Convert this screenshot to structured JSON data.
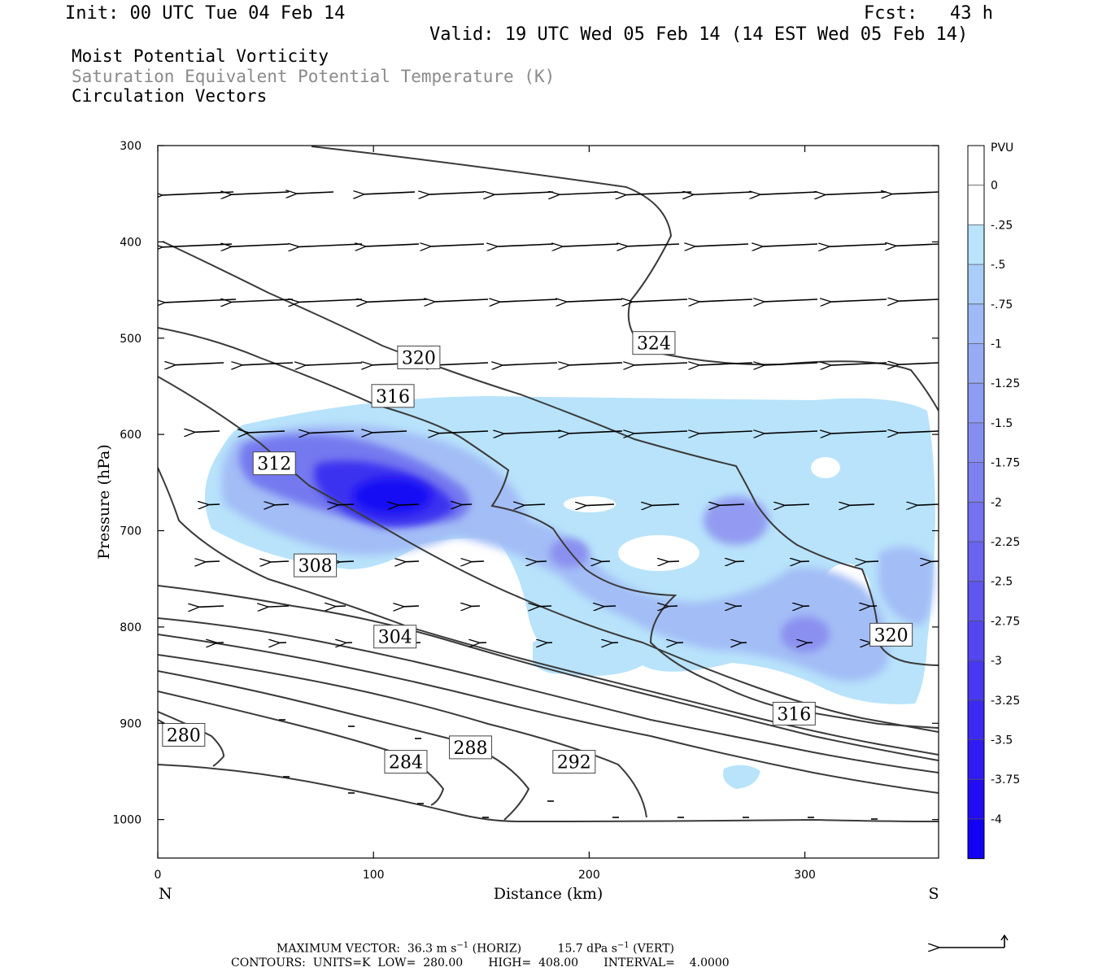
{
  "header": {
    "init": "Init: 00 UTC Tue 04 Feb 14",
    "fcst": "Fcst:   43 h",
    "valid": "Valid: 19 UTC Wed 05 Feb 14 (14 EST Wed 05 Feb 14)",
    "field1": "Moist Potential Vorticity",
    "field2": "Saturation Equivalent Potential Temperature (K)",
    "field3": "Circulation Vectors"
  },
  "colors": {
    "mpv_light": "#b6e2fb",
    "mpv_mid": "#9fb6f5",
    "mpv_strong": "#6f74ef",
    "mpv_max": "#1a14f2",
    "contour": "#333333"
  },
  "footer": {
    "max_vector": "MAXIMUM VECTOR:  36.3 m s",
    "max_vector_horiz_unit": " (HORIZ)",
    "max_vector_vert": "15.7 dPa s",
    "max_vector_vert_unit": " (VERT)",
    "contours": "CONTOURS:  UNITS=K  LOW=  280.00       HIGH=  408.00       INTERVAL=    4.0000"
  },
  "chart_data": {
    "type": "cross-section",
    "xlabel": "Distance (km)",
    "ylabel": "Pressure (hPa)",
    "x_ticks": [
      0,
      100,
      200,
      300
    ],
    "y_ticks": [
      300,
      400,
      500,
      600,
      700,
      800,
      900,
      1000
    ],
    "xlim": [
      0,
      362
    ],
    "ylim": [
      300,
      1040
    ],
    "left_end": "N",
    "right_end": "S",
    "colorbar": {
      "unit": "PVU",
      "levels": [
        "0",
        "-.25",
        "-.5",
        "-.75",
        "-1",
        "-1.25",
        "-1.5",
        "-1.75",
        "-2",
        "-2.25",
        "-2.5",
        "-2.75",
        "-3",
        "-3.25",
        "-3.5",
        "-3.75",
        "-4"
      ],
      "colors": [
        "#ffffff",
        "#ffffff",
        "#b9e4fb",
        "#a9cdf8",
        "#9fbaf6",
        "#97aaf4",
        "#8f9cf3",
        "#878ef2",
        "#7e80f1",
        "#7472f0",
        "#6a63ef",
        "#5f55ef",
        "#5446f0",
        "#4838f1",
        "#3c2af2",
        "#301bf3",
        "#220cf4",
        "#1400f5"
      ]
    },
    "theta_e_contours": [
      {
        "label": "280",
        "km": 12,
        "hpa": 912
      },
      {
        "label": "284",
        "km": 115,
        "hpa": 940
      },
      {
        "label": "288",
        "km": 145,
        "hpa": 925
      },
      {
        "label": "292",
        "km": 193,
        "hpa": 940
      },
      {
        "label": "304",
        "km": 110,
        "hpa": 810
      },
      {
        "label": "308",
        "km": 73,
        "hpa": 736
      },
      {
        "label": "312",
        "km": 54,
        "hpa": 630
      },
      {
        "label": "316",
        "km": 109,
        "hpa": 560
      },
      {
        "label": "320",
        "km": 121,
        "hpa": 520
      },
      {
        "label": "324",
        "km": 230,
        "hpa": 505
      },
      {
        "label": "316",
        "km": 295,
        "hpa": 890
      },
      {
        "label": "320",
        "km": 340,
        "hpa": 808
      }
    ],
    "max_vector_horiz_m_s": 36.3,
    "max_vector_vert_dPa_s": 15.7
  }
}
